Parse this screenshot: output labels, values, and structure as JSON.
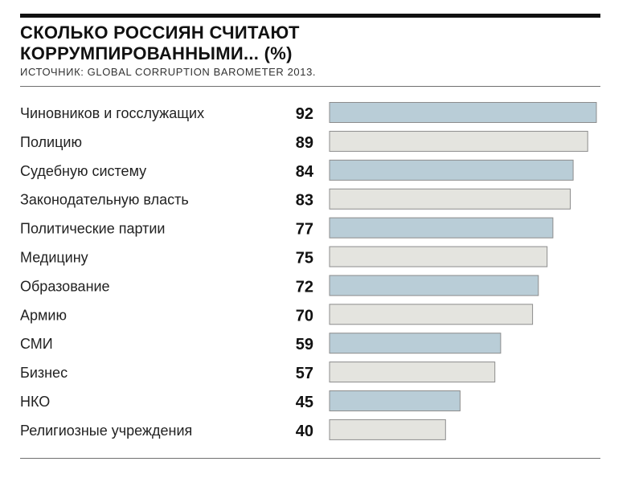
{
  "chart_data": {
    "type": "bar",
    "orientation": "horizontal",
    "title_lines": [
      "СКОЛЬКО РОССИЯН СЧИТАЮТ",
      "КОРРУМПИРОВАННЫМИ... (%)"
    ],
    "subtitle": "ИСТОЧНИК: GLOBAL CORRUPTION BAROMETER 2013.",
    "categories": [
      "Чиновников и госслужащих",
      "Полицию",
      "Судебную систему",
      "Законодательную власть",
      "Политические партии",
      "Медицину",
      "Образование",
      "Армию",
      "СМИ",
      "Бизнес",
      "НКО",
      "Религиозные учреждения"
    ],
    "values": [
      92,
      89,
      84,
      83,
      77,
      75,
      72,
      70,
      59,
      57,
      45,
      40
    ],
    "value_labels": [
      "92",
      "89",
      "84",
      "83",
      "77",
      "75",
      "72",
      "70",
      "59",
      "57",
      "45",
      "40"
    ],
    "xlim": [
      0,
      92
    ],
    "grid": false,
    "legend": "none",
    "colors": {
      "bar_odd": "#b9cdd7",
      "bar_even": "#e4e4df",
      "bar_stroke": "#8c8c8c"
    }
  }
}
